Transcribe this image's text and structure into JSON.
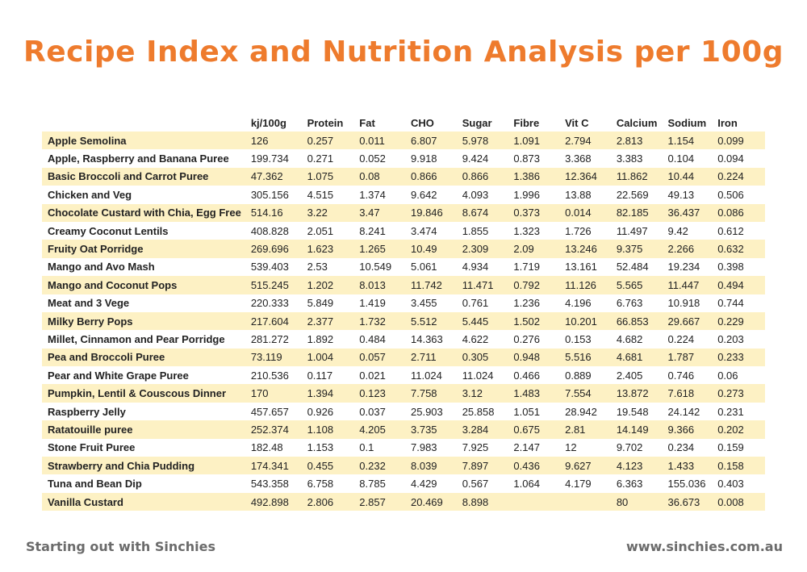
{
  "title": "Recipe Index and Nutrition Analysis per 100g",
  "table": {
    "columns": [
      "",
      "kj/100g",
      "Protein",
      "Fat",
      "CHO",
      "Sugar",
      "Fibre",
      "Vit C",
      "Calcium",
      "Sodium",
      "Iron"
    ],
    "rows": [
      [
        "Apple Semolina",
        "126",
        "0.257",
        "0.011",
        "6.807",
        "5.978",
        "1.091",
        "2.794",
        "2.813",
        "1.154",
        "0.099"
      ],
      [
        "Apple, Raspberry and Banana Puree",
        "199.734",
        "0.271",
        "0.052",
        "9.918",
        "9.424",
        "0.873",
        "3.368",
        "3.383",
        "0.104",
        "0.094"
      ],
      [
        "Basic Broccoli and Carrot Puree",
        "47.362",
        "1.075",
        "0.08",
        "0.866",
        "0.866",
        "1.386",
        "12.364",
        "11.862",
        "10.44",
        "0.224"
      ],
      [
        "Chicken and Veg",
        "305.156",
        "4.515",
        "1.374",
        "9.642",
        "4.093",
        "1.996",
        "13.88",
        "22.569",
        "49.13",
        "0.506"
      ],
      [
        "Chocolate Custard with Chia, Egg Free",
        "514.16",
        "3.22",
        "3.47",
        "19.846",
        "8.674",
        "0.373",
        "0.014",
        "82.185",
        "36.437",
        "0.086"
      ],
      [
        "Creamy Coconut Lentils",
        "408.828",
        "2.051",
        "8.241",
        "3.474",
        "1.855",
        "1.323",
        "1.726",
        "11.497",
        "9.42",
        "0.612"
      ],
      [
        "Fruity Oat Porridge",
        "269.696",
        "1.623",
        "1.265",
        "10.49",
        "2.309",
        "2.09",
        "13.246",
        "9.375",
        "2.266",
        "0.632"
      ],
      [
        "Mango and Avo Mash",
        "539.403",
        "2.53",
        "10.549",
        "5.061",
        "4.934",
        "1.719",
        "13.161",
        "52.484",
        "19.234",
        "0.398"
      ],
      [
        "Mango and Coconut Pops",
        "515.245",
        "1.202",
        "8.013",
        "11.742",
        "11.471",
        "0.792",
        "11.126",
        "5.565",
        "11.447",
        "0.494"
      ],
      [
        "Meat and 3 Vege",
        "220.333",
        "5.849",
        "1.419",
        "3.455",
        "0.761",
        "1.236",
        "4.196",
        "6.763",
        "10.918",
        "0.744"
      ],
      [
        "Milky Berry Pops",
        "217.604",
        "2.377",
        "1.732",
        "5.512",
        "5.445",
        "1.502",
        "10.201",
        "66.853",
        "29.667",
        "0.229"
      ],
      [
        "Millet, Cinnamon and Pear Porridge",
        "281.272",
        "1.892",
        "0.484",
        "14.363",
        "4.622",
        "0.276",
        "0.153",
        "4.682",
        "0.224",
        "0.203"
      ],
      [
        "Pea and Broccoli Puree",
        "73.119",
        "1.004",
        "0.057",
        "2.711",
        "0.305",
        "0.948",
        "5.516",
        "4.681",
        "1.787",
        "0.233"
      ],
      [
        "Pear and White Grape Puree",
        "210.536",
        "0.117",
        "0.021",
        "11.024",
        "11.024",
        "0.466",
        "0.889",
        "2.405",
        "0.746",
        "0.06"
      ],
      [
        "Pumpkin, Lentil & Couscous Dinner",
        "170",
        "1.394",
        "0.123",
        "7.758",
        "3.12",
        "1.483",
        "7.554",
        "13.872",
        "7.618",
        "0.273"
      ],
      [
        "Raspberry Jelly",
        "457.657",
        "0.926",
        "0.037",
        "25.903",
        "25.858",
        "1.051",
        "28.942",
        "19.548",
        "24.142",
        "0.231"
      ],
      [
        "Ratatouille puree",
        "252.374",
        "1.108",
        "4.205",
        "3.735",
        "3.284",
        "0.675",
        "2.81",
        "14.149",
        "9.366",
        "0.202"
      ],
      [
        "Stone Fruit Puree",
        "182.48",
        "1.153",
        "0.1",
        "7.983",
        "7.925",
        "2.147",
        "12",
        "9.702",
        "0.234",
        "0.159"
      ],
      [
        "Strawberry and Chia Pudding",
        "174.341",
        "0.455",
        "0.232",
        "8.039",
        "7.897",
        "0.436",
        "9.627",
        "4.123",
        "1.433",
        "0.158"
      ],
      [
        "Tuna and Bean Dip",
        "543.358",
        "6.758",
        "8.785",
        "4.429",
        "0.567",
        "1.064",
        "4.179",
        "6.363",
        "155.036",
        "0.403"
      ],
      [
        "Vanilla Custard",
        "492.898",
        "2.806",
        "2.857",
        "20.469",
        "8.898",
        "",
        "",
        "80",
        "36.673",
        "0.008"
      ]
    ]
  },
  "footer": {
    "left": "Starting out with Sinchies",
    "right": "www.sinchies.com.au"
  },
  "colors": {
    "title": "#ee7b2d",
    "row_stripe": "#fdf1c4",
    "footer_text": "#6b6b6b"
  }
}
